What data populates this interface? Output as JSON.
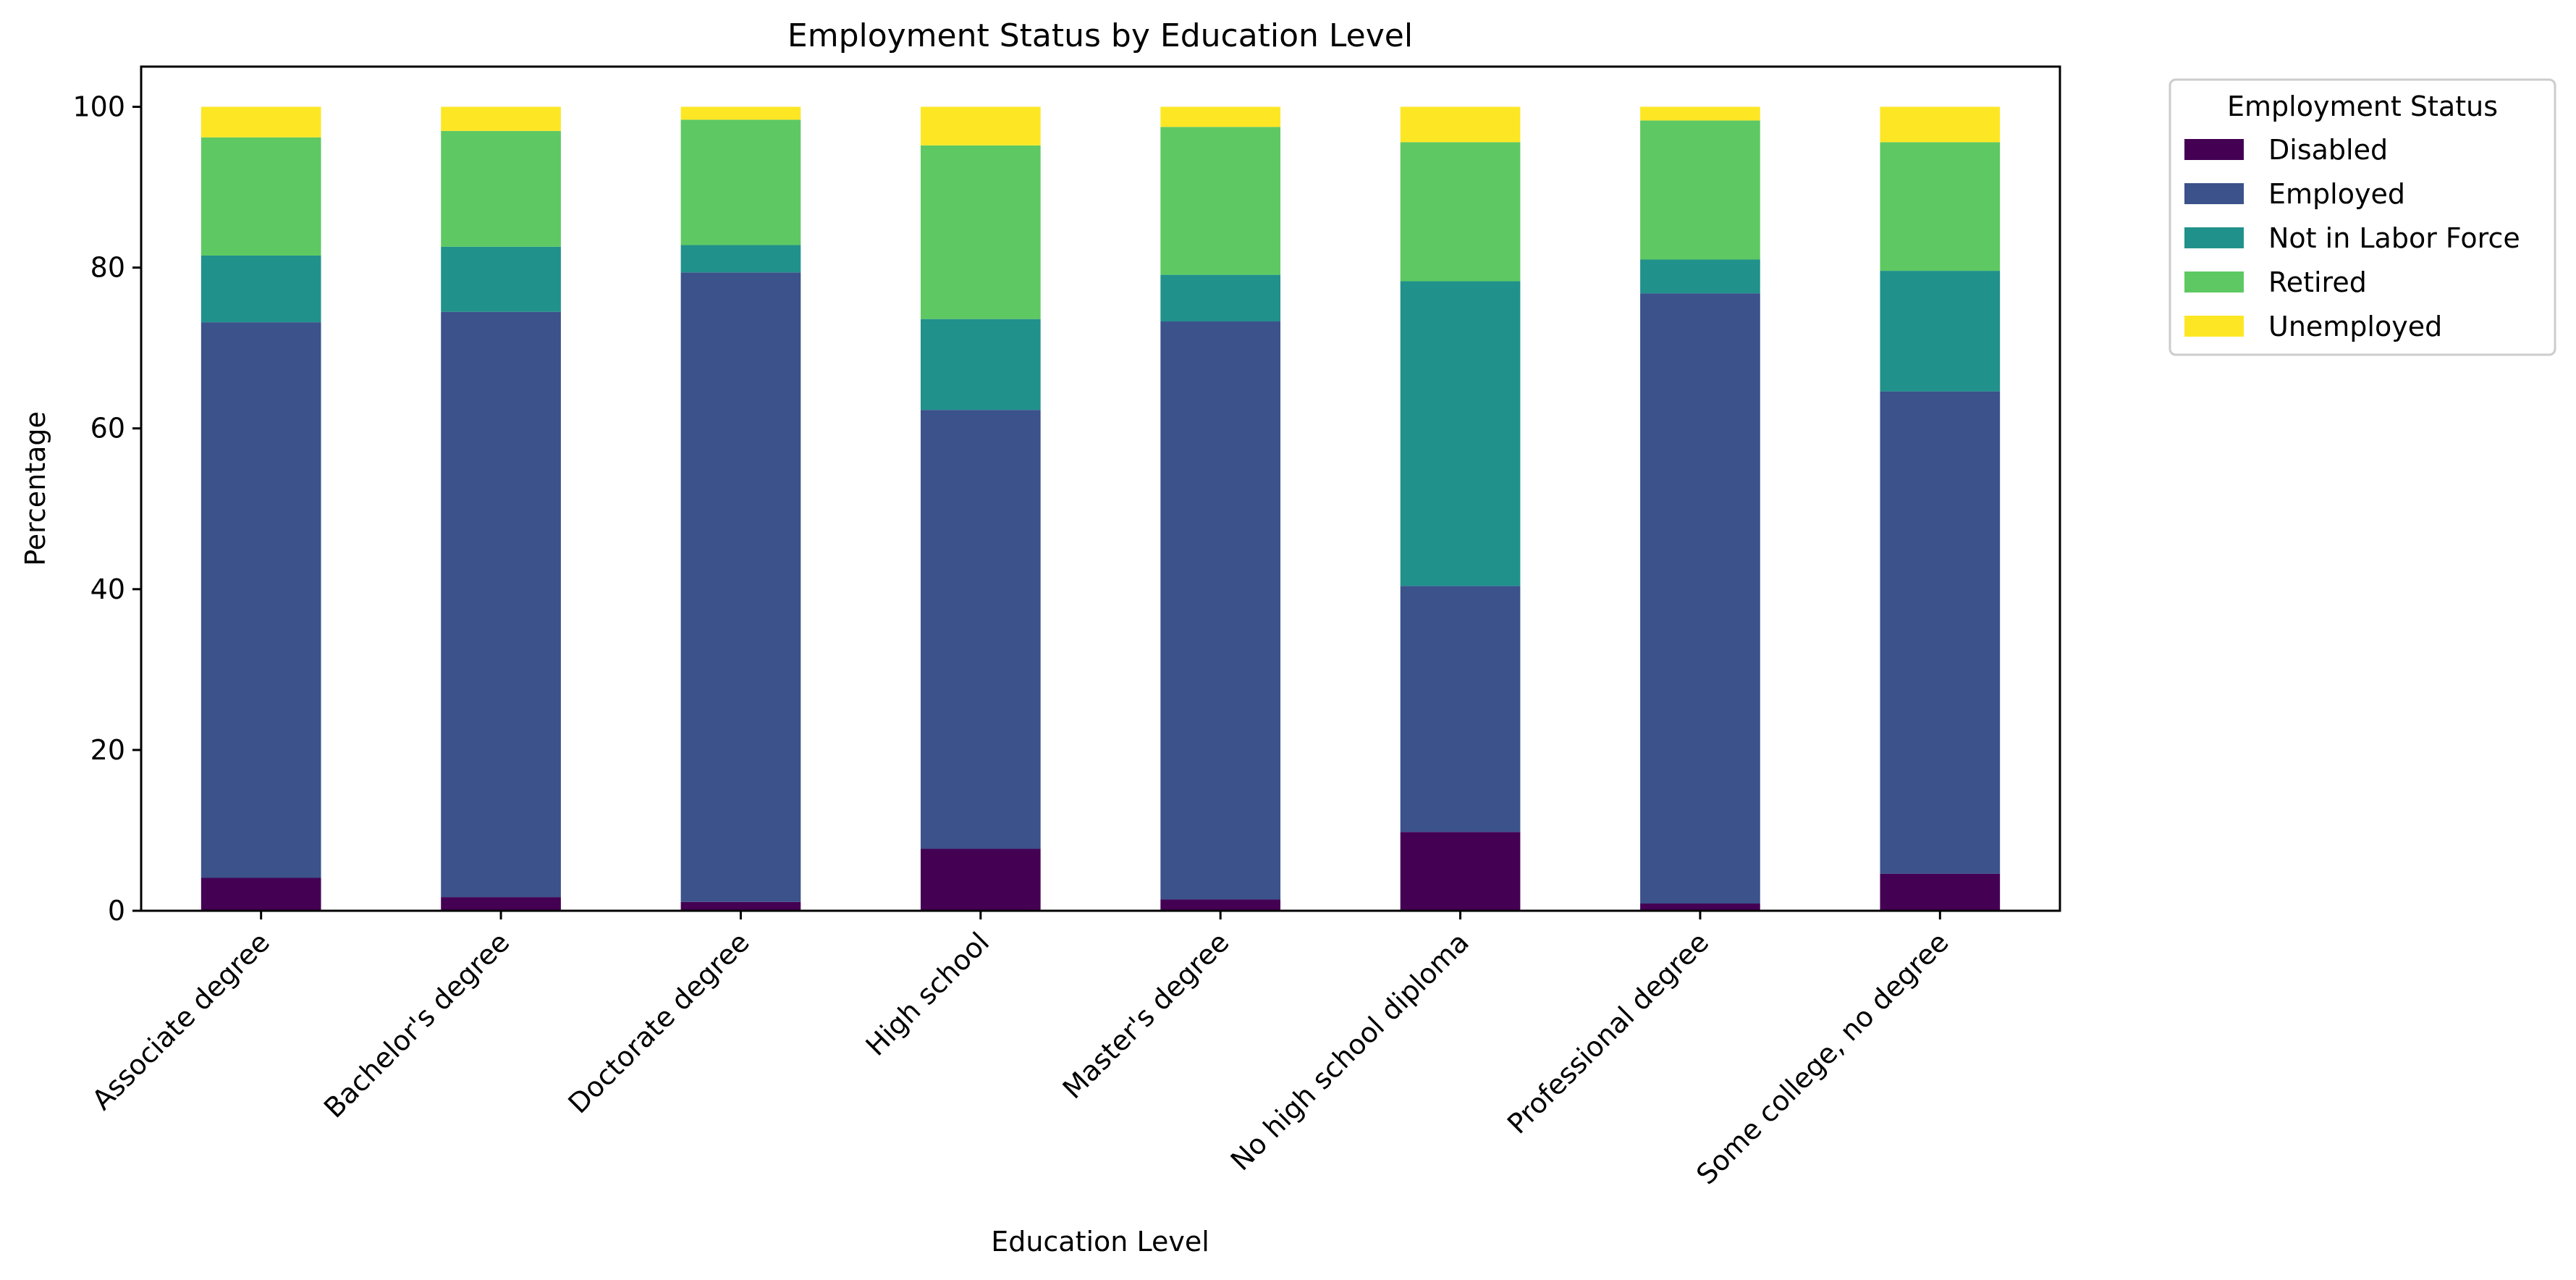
{
  "chart_data": {
    "type": "bar",
    "stacked": true,
    "title": "Employment Status by Education Level",
    "xlabel": "Education Level",
    "ylabel": "Percentage",
    "ylim": [
      0,
      105
    ],
    "yticks": [
      0,
      20,
      40,
      60,
      80,
      100
    ],
    "grid": false,
    "legend": {
      "title": "Employment Status",
      "placement": "outside upper-right"
    },
    "categories": [
      "Associate degree",
      "Bachelor's degree",
      "Doctorate degree",
      "High school",
      "Master's degree",
      "No high school diploma",
      "Professional degree",
      "Some college, no degree"
    ],
    "series": [
      {
        "name": "Disabled",
        "color": "#440154",
        "values": [
          4.1,
          1.7,
          1.1,
          7.7,
          1.4,
          9.8,
          0.9,
          4.6
        ]
      },
      {
        "name": "Employed",
        "color": "#3b528b",
        "values": [
          69.1,
          72.8,
          78.3,
          54.6,
          71.9,
          30.6,
          75.9,
          60.0
        ]
      },
      {
        "name": "Not in Labor Force",
        "color": "#21918c",
        "values": [
          8.3,
          8.1,
          3.4,
          11.3,
          5.8,
          37.9,
          4.2,
          15.0
        ]
      },
      {
        "name": "Retired",
        "color": "#5ec962",
        "values": [
          14.7,
          14.4,
          15.6,
          21.6,
          18.4,
          17.3,
          17.3,
          16.0
        ]
      },
      {
        "name": "Unemployed",
        "color": "#fde725",
        "values": [
          3.8,
          3.0,
          1.6,
          4.8,
          2.5,
          4.4,
          1.7,
          4.4
        ]
      }
    ]
  }
}
